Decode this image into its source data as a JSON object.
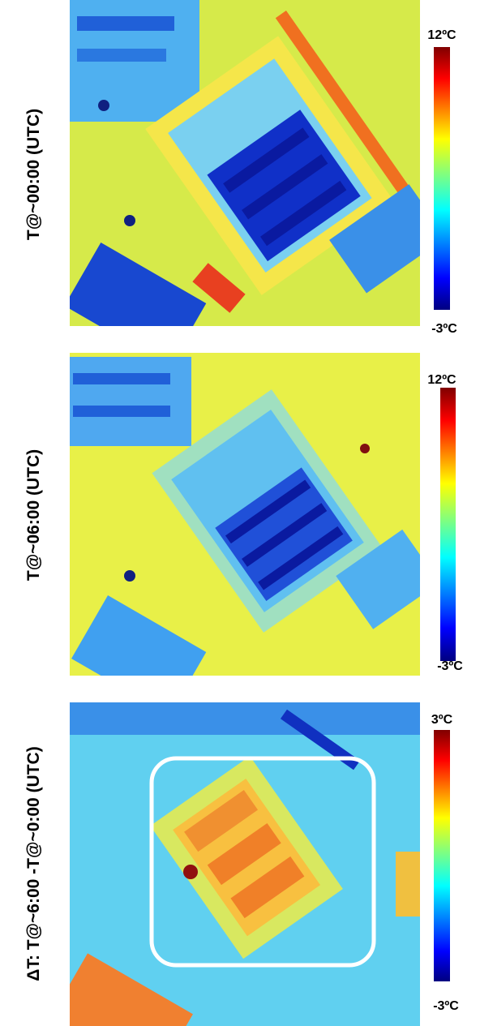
{
  "panels": [
    {
      "label": "T@~00:00 (UTC)",
      "scale_max": "12ºC",
      "scale_min": "-3ºC"
    },
    {
      "label": "T@~06:00 (UTC)",
      "scale_max": "12ºC",
      "scale_min": "-3ºC"
    },
    {
      "label": "ΔT: T@~6:00 -T@~0:00 (UTC)",
      "scale_max": "3ºC",
      "scale_min": "-3ºC"
    }
  ]
}
